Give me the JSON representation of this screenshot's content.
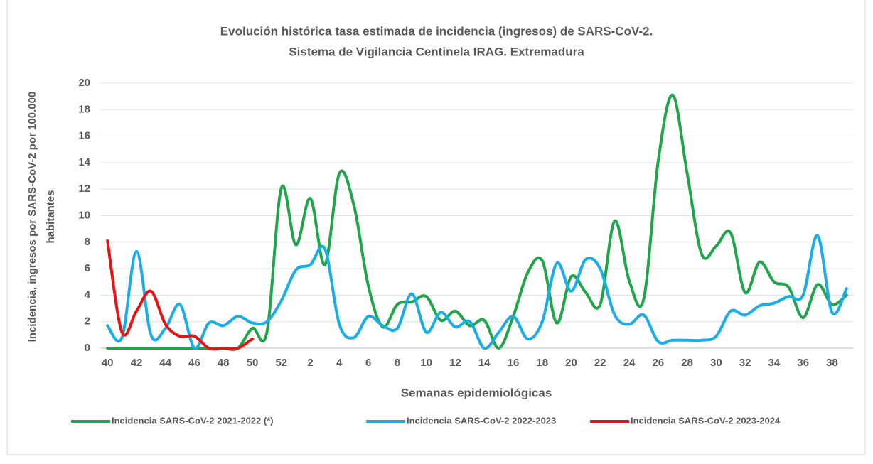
{
  "chart_data": {
    "type": "line",
    "title": [
      "Evolución histórica tasa estimada de incidencia (ingresos) de SARS-CoV-2.",
      "Sistema de Vigilancia Centinela IRAG. Extremadura"
    ],
    "x_label": "Semanas epidemiológicas",
    "y_label": [
      "Incidencia, ingresos por SARS-CoV-2 por  100.000",
      "habitantes"
    ],
    "categories": [
      "40",
      null,
      "42",
      null,
      "44",
      null,
      "46",
      null,
      "48",
      null,
      "50",
      null,
      "52",
      null,
      "2",
      null,
      "4",
      null,
      "6",
      null,
      "8",
      null,
      "10",
      null,
      "12",
      null,
      "14",
      null,
      "16",
      null,
      "18",
      null,
      "20",
      null,
      "22",
      null,
      "24",
      null,
      "26",
      null,
      "28",
      null,
      "30",
      null,
      "32",
      null,
      "34",
      null,
      "36",
      null,
      "38",
      null
    ],
    "series": [
      {
        "name": "Incidencia SARS-CoV-2 2021-2022 (*)",
        "color": "#1fa54a",
        "values": [
          0,
          0,
          0,
          0,
          0,
          0,
          0,
          0,
          0,
          0,
          1.5,
          1.2,
          12.1,
          7.8,
          11.3,
          6.3,
          13.2,
          10.8,
          4.7,
          1.6,
          3.3,
          3.5,
          3.9,
          2.1,
          2.8,
          1.7,
          2.1,
          0,
          2.4,
          5.7,
          6.6,
          1.9,
          5.4,
          4.2,
          3.3,
          9.6,
          5.1,
          3.7,
          14.1,
          19.1,
          13.2,
          7.1,
          7.7,
          8.7,
          4.2,
          6.5,
          5.0,
          4.6,
          2.3,
          4.8,
          3.3,
          4.0
        ]
      },
      {
        "name": "Incidencia SARS-CoV-2 2022-2023",
        "color": "#19aee8",
        "values": [
          1.7,
          0.8,
          7.3,
          1.0,
          1.5,
          3.3,
          0,
          1.9,
          1.7,
          2.4,
          1.9,
          2.0,
          3.6,
          5.9,
          6.3,
          7.5,
          1.8,
          0.8,
          2.4,
          1.7,
          1.5,
          4.1,
          1.2,
          2.7,
          1.6,
          2.0,
          0,
          1.2,
          2.4,
          0.7,
          2.0,
          6.4,
          4.3,
          6.7,
          6.0,
          2.5,
          1.8,
          2.5,
          0.5,
          0.6,
          0.6,
          0.6,
          0.9,
          2.8,
          2.5,
          3.2,
          3.4,
          3.9,
          4.0,
          8.5,
          2.7,
          4.5
        ]
      },
      {
        "name": "Incidencia SARS-CoV-2 2023-2024",
        "color": "#ee1111",
        "values": [
          8.1,
          1.2,
          2.8,
          4.3,
          1.8,
          0.9,
          0.9,
          0,
          0,
          0,
          0.7,
          null,
          null,
          null,
          null,
          null,
          null,
          null,
          null,
          null,
          null,
          null,
          null,
          null,
          null,
          null,
          null,
          null,
          null,
          null,
          null,
          null,
          null,
          null,
          null,
          null,
          null,
          null,
          null,
          null,
          null,
          null,
          null,
          null,
          null,
          null,
          null,
          null,
          null,
          null,
          null,
          null
        ]
      }
    ],
    "ylim": [
      0,
      20
    ],
    "yticks": [
      0,
      2,
      4,
      6,
      8,
      10,
      12,
      14,
      16,
      18,
      20
    ],
    "grid": true,
    "legend": "bottom"
  }
}
